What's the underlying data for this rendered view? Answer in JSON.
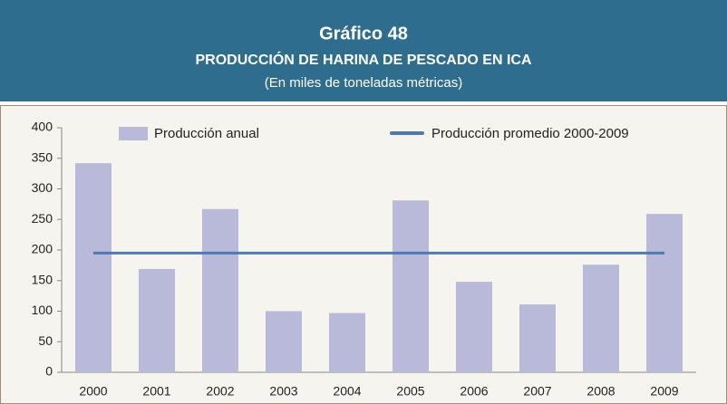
{
  "chart_data": {
    "type": "bar",
    "title": "Gráfico 48",
    "subtitle": "PRODUCCIÓN DE HARINA DE PESCADO EN ICA",
    "note": "(En miles de toneladas métricas)",
    "categories": [
      "2000",
      "2001",
      "2002",
      "2003",
      "2004",
      "2005",
      "2006",
      "2007",
      "2008",
      "2009"
    ],
    "series": [
      {
        "name": "Producción anual",
        "type": "bar",
        "color": "#b9b9d9",
        "values": [
          342,
          169,
          267,
          100,
          97,
          281,
          148,
          111,
          176,
          259
        ]
      },
      {
        "name": "Producción promedio 2000-2009",
        "type": "line",
        "color": "#4f79b3",
        "values": [
          195,
          195,
          195,
          195,
          195,
          195,
          195,
          195,
          195,
          195
        ]
      }
    ],
    "ylim": [
      0,
      400
    ],
    "yticks": [
      0,
      50,
      100,
      150,
      200,
      250,
      300,
      350,
      400
    ],
    "grid": false,
    "legend": "top"
  }
}
